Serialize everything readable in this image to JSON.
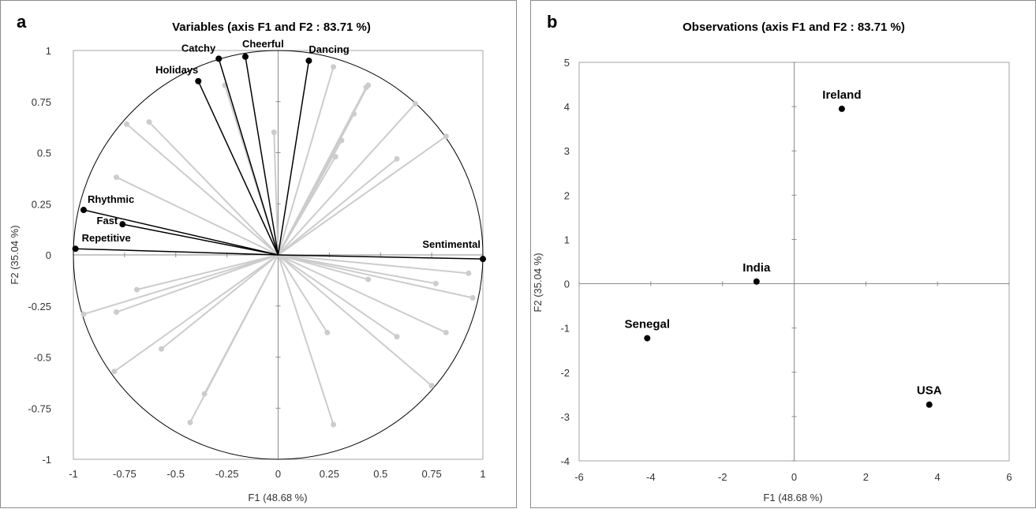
{
  "panels": [
    {
      "letter": "a",
      "chart_data": {
        "type": "scatter",
        "title": "Variables (axis F1 and F2 : 83.71 %)",
        "xlabel": "F1 (48.68 %)",
        "ylabel": "F2 (35.04 %)",
        "xlim": [
          -1,
          1
        ],
        "ylim": [
          -1,
          1
        ],
        "xticks": [
          "-1",
          "-0.75",
          "-0.5",
          "-0.25",
          "0",
          "0.25",
          "0.5",
          "0.75",
          "1"
        ],
        "yticks": [
          "1",
          "0.75",
          "0.5",
          "0.25",
          "0",
          "-0.25",
          "-0.5",
          "-0.75",
          "-1"
        ],
        "correlation_circle": true,
        "highlighted_color": "#000000",
        "background_color": "#cccccc",
        "highlighted_variables": [
          {
            "label": "Catchy",
            "x": -0.29,
            "y": 0.96
          },
          {
            "label": "Cheerful",
            "x": -0.16,
            "y": 0.97
          },
          {
            "label": "Dancing",
            "x": 0.15,
            "y": 0.95
          },
          {
            "label": "Holidays",
            "x": -0.39,
            "y": 0.85
          },
          {
            "label": "Rhythmic",
            "x": -0.95,
            "y": 0.22
          },
          {
            "label": "Fast",
            "x": -0.76,
            "y": 0.15
          },
          {
            "label": "Repetitive",
            "x": -0.99,
            "y": 0.03
          },
          {
            "label": "Sentimental",
            "x": 1.0,
            "y": -0.02
          }
        ],
        "other_variables": [
          {
            "x": -0.74,
            "y": 0.64
          },
          {
            "x": -0.63,
            "y": 0.65
          },
          {
            "x": -0.79,
            "y": 0.38
          },
          {
            "x": -0.26,
            "y": 0.83
          },
          {
            "x": -0.02,
            "y": 0.6
          },
          {
            "x": 0.27,
            "y": 0.92
          },
          {
            "x": 0.44,
            "y": 0.83
          },
          {
            "x": 0.43,
            "y": 0.82
          },
          {
            "x": 0.37,
            "y": 0.69
          },
          {
            "x": 0.31,
            "y": 0.56
          },
          {
            "x": 0.28,
            "y": 0.48
          },
          {
            "x": 0.58,
            "y": 0.47
          },
          {
            "x": 0.67,
            "y": 0.74
          },
          {
            "x": 0.82,
            "y": 0.58
          },
          {
            "x": -0.69,
            "y": -0.17
          },
          {
            "x": -0.95,
            "y": -0.29
          },
          {
            "x": -0.79,
            "y": -0.28
          },
          {
            "x": -0.57,
            "y": -0.46
          },
          {
            "x": -0.8,
            "y": -0.57
          },
          {
            "x": -0.36,
            "y": -0.68
          },
          {
            "x": -0.43,
            "y": -0.82
          },
          {
            "x": 0.27,
            "y": -0.83
          },
          {
            "x": 0.24,
            "y": -0.38
          },
          {
            "x": 0.44,
            "y": -0.12
          },
          {
            "x": 0.58,
            "y": -0.4
          },
          {
            "x": 0.77,
            "y": -0.14
          },
          {
            "x": 0.93,
            "y": -0.09
          },
          {
            "x": 0.95,
            "y": -0.21
          },
          {
            "x": 0.82,
            "y": -0.38
          },
          {
            "x": 0.75,
            "y": -0.64
          }
        ]
      }
    },
    {
      "letter": "b",
      "chart_data": {
        "type": "scatter",
        "title": "Observations (axis F1 and F2 : 83.71 %)",
        "xlabel": "F1 (48.68 %)",
        "ylabel": "F2 (35.04 %)",
        "xlim": [
          -6,
          6
        ],
        "ylim": [
          -4,
          5
        ],
        "xticks": [
          "-6",
          "-4",
          "-2",
          "0",
          "2",
          "4",
          "6"
        ],
        "yticks": [
          "5",
          "4",
          "3",
          "2",
          "1",
          "0",
          "-1",
          "-2",
          "-3",
          "-4"
        ],
        "points": [
          {
            "label": "Ireland",
            "x": 1.33,
            "y": 3.95
          },
          {
            "label": "India",
            "x": -1.05,
            "y": 0.05
          },
          {
            "label": "Senegal",
            "x": -4.1,
            "y": -1.23
          },
          {
            "label": "USA",
            "x": 3.77,
            "y": -2.73
          }
        ]
      }
    }
  ]
}
